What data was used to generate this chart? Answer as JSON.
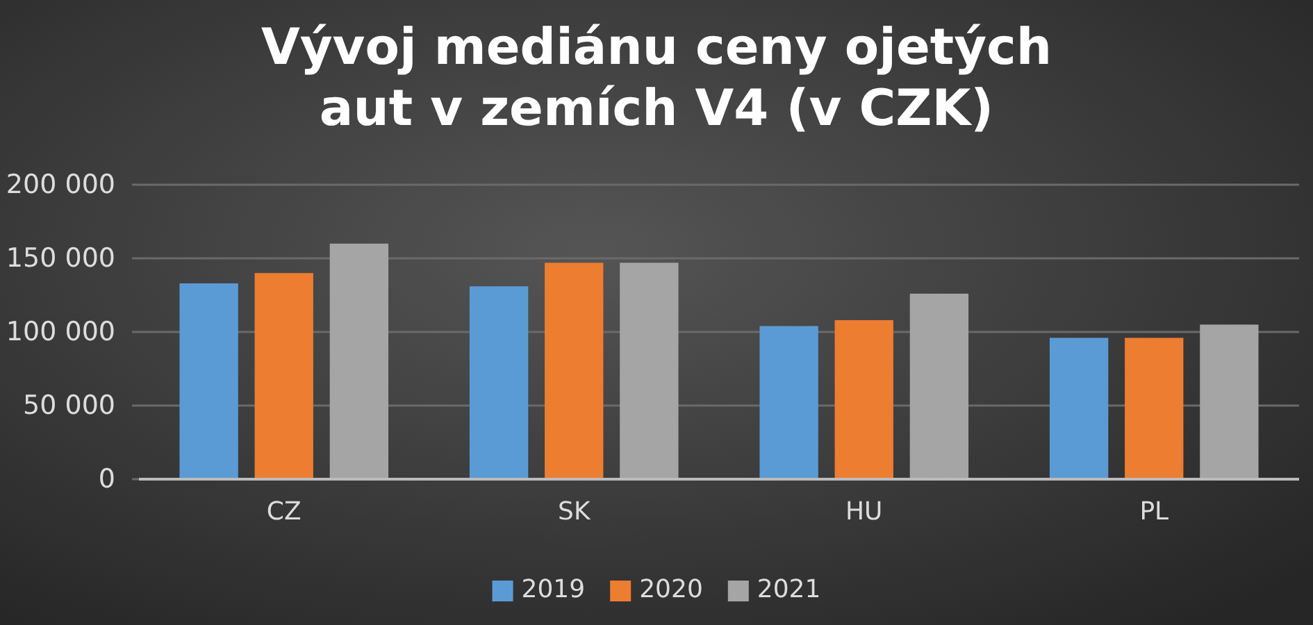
{
  "chart_data": {
    "type": "bar",
    "title": "Vývoj mediánu ceny ojetých aut v zemích V4 (v CZK)",
    "categories": [
      "CZ",
      "SK",
      "HU",
      "PL"
    ],
    "series": [
      {
        "name": "2019",
        "color": "#5b9bd5",
        "values": [
          133000,
          131000,
          104000,
          96000
        ]
      },
      {
        "name": "2020",
        "color": "#ed7d31",
        "values": [
          140000,
          147000,
          108000,
          96000
        ]
      },
      {
        "name": "2021",
        "color": "#a5a5a5",
        "values": [
          160000,
          147000,
          126000,
          105000
        ]
      }
    ],
    "ylim": [
      0,
      200000
    ],
    "yticks": [
      {
        "value": 0,
        "label": "0"
      },
      {
        "value": 50000,
        "label": "50 000"
      },
      {
        "value": 100000,
        "label": "100 000"
      },
      {
        "value": 150000,
        "label": "150 000"
      },
      {
        "value": 200000,
        "label": "200 000"
      }
    ],
    "grid": "y",
    "legend": "bottom"
  }
}
